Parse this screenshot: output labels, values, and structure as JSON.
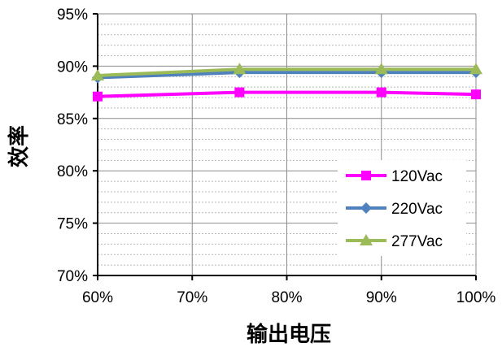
{
  "chart_data": {
    "type": "line",
    "title": "",
    "xlabel": "输出电压",
    "ylabel": "效率",
    "x": [
      "60%",
      "75%",
      "90%",
      "100%"
    ],
    "x_values": [
      60,
      75,
      90,
      100
    ],
    "xlim": [
      60,
      100
    ],
    "x_ticks": [
      "60%",
      "70%",
      "80%",
      "90%",
      "100%"
    ],
    "x_tick_values": [
      60,
      70,
      80,
      90,
      100
    ],
    "ylim": [
      70,
      95
    ],
    "y_ticks": [
      "70%",
      "75%",
      "80%",
      "85%",
      "90%",
      "95%"
    ],
    "y_tick_values": [
      70,
      75,
      80,
      85,
      90,
      95
    ],
    "grid": true,
    "legend_position": "bottom-right",
    "series": [
      {
        "name": "120Vac",
        "values": [
          87.1,
          87.5,
          87.5,
          87.3
        ],
        "color": "#ff00ff",
        "marker": "square"
      },
      {
        "name": "220Vac",
        "values": [
          88.9,
          89.4,
          89.4,
          89.4
        ],
        "color": "#4f81bd",
        "marker": "diamond"
      },
      {
        "name": "277Vac",
        "values": [
          89.1,
          89.7,
          89.7,
          89.7
        ],
        "color": "#9bbb59",
        "marker": "triangle"
      }
    ]
  }
}
